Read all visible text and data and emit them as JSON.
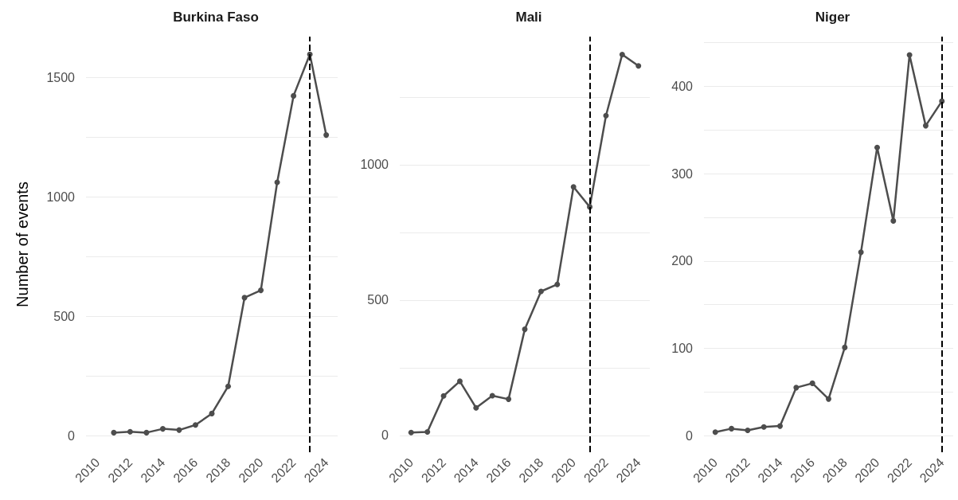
{
  "chart_data": [
    {
      "type": "line",
      "title": "Burkina Faso",
      "ylabel": "Number of events",
      "x": [
        2011,
        2012,
        2013,
        2014,
        2015,
        2016,
        2017,
        2018,
        2019,
        2020,
        2021,
        2022,
        2023,
        2024
      ],
      "series": [
        {
          "color": "#4d4d4d",
          "values": [
            12,
            16,
            12,
            28,
            23,
            44,
            92,
            206,
            577,
            608,
            1060,
            1422,
            1596,
            1258
          ]
        }
      ],
      "xlim": [
        2009.3,
        2024.7
      ],
      "xticks": [
        2010,
        2012,
        2014,
        2016,
        2018,
        2020,
        2022,
        2024
      ],
      "ylim": [
        -70,
        1670
      ],
      "yticks": [
        0,
        {
          "value": 250,
          "label": null
        },
        500,
        {
          "value": 750,
          "label": null
        },
        1000,
        {
          "value": 1250,
          "label": null
        },
        1500
      ],
      "ref_lines": [
        {
          "axis": "x",
          "value": 2023,
          "color": "#000000",
          "line_style": "dashed"
        }
      ],
      "grid": "y",
      "marker": "circle",
      "line_style": "solid"
    },
    {
      "type": "line",
      "title": "Mali",
      "x": [
        2010,
        2011,
        2012,
        2013,
        2014,
        2015,
        2016,
        2017,
        2018,
        2019,
        2020,
        2021,
        2022,
        2023,
        2024
      ],
      "series": [
        {
          "color": "#4d4d4d",
          "values": [
            11,
            13,
            146,
            200,
            102,
            147,
            134,
            392,
            532,
            558,
            918,
            844,
            1181,
            1407,
            1365
          ]
        }
      ],
      "xlim": [
        2009.3,
        2024.7
      ],
      "xticks": [
        2010,
        2012,
        2014,
        2016,
        2018,
        2020,
        2022,
        2024
      ],
      "ylim": [
        -62,
        1473
      ],
      "yticks": [
        0,
        {
          "value": 250,
          "label": null
        },
        500,
        {
          "value": 750,
          "label": null
        },
        1000,
        {
          "value": 1250,
          "label": null
        }
      ],
      "ref_lines": [
        {
          "axis": "x",
          "value": 2021,
          "color": "#000000",
          "line_style": "dashed"
        }
      ],
      "grid": "y",
      "marker": "circle",
      "line_style": "solid"
    },
    {
      "type": "line",
      "title": "Niger",
      "x": [
        2010,
        2011,
        2012,
        2013,
        2014,
        2015,
        2016,
        2017,
        2018,
        2019,
        2020,
        2021,
        2022,
        2023,
        2024
      ],
      "series": [
        {
          "color": "#4d4d4d",
          "values": [
            4,
            8,
            6,
            10,
            11,
            55,
            60,
            42,
            101,
            210,
            330,
            246,
            436,
            355,
            383
          ]
        }
      ],
      "xlim": [
        2009.3,
        2024.7
      ],
      "xticks": [
        2010,
        2012,
        2014,
        2016,
        2018,
        2020,
        2022,
        2024
      ],
      "ylim": [
        -19,
        457
      ],
      "yticks": [
        0,
        {
          "value": 50,
          "label": null
        },
        100,
        {
          "value": 150,
          "label": null
        },
        200,
        {
          "value": 250,
          "label": null
        },
        300,
        {
          "value": 350,
          "label": null
        },
        400,
        {
          "value": 450,
          "label": null
        }
      ],
      "ref_lines": [
        {
          "axis": "x",
          "value": 2024,
          "color": "#000000",
          "line_style": "dashed"
        }
      ],
      "grid": "y",
      "marker": "circle",
      "line_style": "solid"
    }
  ]
}
